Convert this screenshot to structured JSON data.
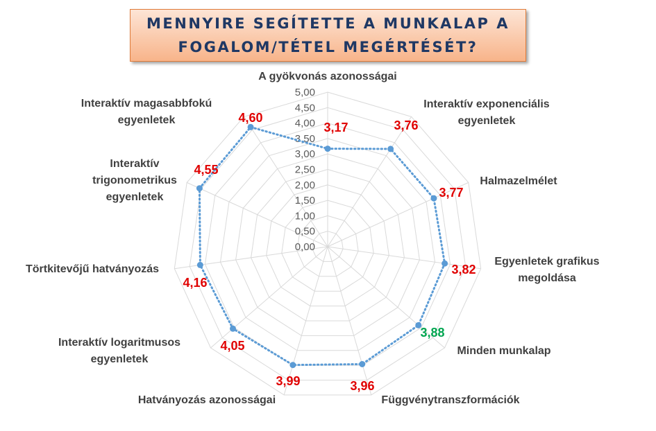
{
  "title": "MENNYIRE SEGÍTETTE A MUNKALAP A FOGALOM/TÉTEL MEGÉRTÉSÉT?",
  "chart_data": {
    "type": "radar",
    "title": "MENNYIRE SEGÍTETTE A MUNKALAP A FOGALOM/TÉTEL MEGÉRTÉSÉT?",
    "rlim": [
      0,
      5
    ],
    "ticks": [
      "0,00",
      "0,50",
      "1,00",
      "1,50",
      "2,00",
      "2,50",
      "3,00",
      "3,50",
      "4,00",
      "4,50",
      "5,00"
    ],
    "grid": true,
    "categories": [
      {
        "label": [
          "A gyökvonás azonosságai"
        ],
        "value": 3.17,
        "value_label": "3,17",
        "color": "#e00000"
      },
      {
        "label": [
          "Interaktív exponenciális",
          "egyenletek"
        ],
        "value": 3.76,
        "value_label": "3,76",
        "color": "#e00000"
      },
      {
        "label": [
          "Halmazelmélet"
        ],
        "value": 3.77,
        "value_label": "3,77",
        "color": "#e00000"
      },
      {
        "label": [
          "Egyenletek  grafikus",
          "megoldása"
        ],
        "value": 3.82,
        "value_label": "3,82",
        "color": "#e00000"
      },
      {
        "label": [
          "Minden munkalap"
        ],
        "value": 3.88,
        "value_label": "3,88",
        "color": "#00a550"
      },
      {
        "label": [
          "Függvénytranszformációk"
        ],
        "value": 3.96,
        "value_label": "3,96",
        "color": "#e00000"
      },
      {
        "label": [
          "Hatványozás azonosságai"
        ],
        "value": 3.99,
        "value_label": "3,99",
        "color": "#e00000"
      },
      {
        "label": [
          "Interaktív logaritmusos",
          "egyenletek"
        ],
        "value": 4.05,
        "value_label": "4,05",
        "color": "#e00000"
      },
      {
        "label": [
          "Törtkitevőjű hatványozás"
        ],
        "value": 4.16,
        "value_label": "4,16",
        "color": "#e00000"
      },
      {
        "label": [
          "Interaktív",
          "trigonometrikus",
          "egyenletek"
        ],
        "value": 4.55,
        "value_label": "4,55",
        "color": "#e00000"
      },
      {
        "label": [
          "Interaktív magasabbfokú",
          "egyenletek"
        ],
        "value": 4.6,
        "value_label": "4,60",
        "color": "#e00000"
      }
    ],
    "series_color": "#5b9bd5"
  }
}
